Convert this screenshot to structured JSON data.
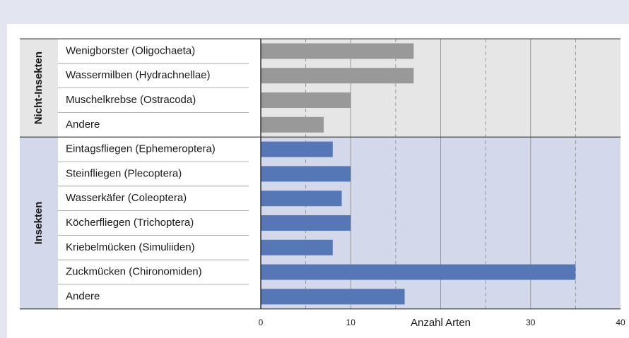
{
  "chart_data": {
    "type": "bar",
    "orientation": "horizontal",
    "groups": [
      {
        "name": "Nicht-Insekten",
        "color": "#999999",
        "background": "#e6e6e7",
        "categories": [
          "Wenigborster (Oligochaeta)",
          "Wassermilben (Hydrachnellae)",
          "Muschelkrebse (Ostracoda)",
          "Andere"
        ],
        "values": [
          17,
          17,
          10,
          7
        ]
      },
      {
        "name": "Insekten",
        "color": "#5577b5",
        "background": "#d3d8eb",
        "categories": [
          "Eintagsfliegen (Ephemeroptera)",
          "Steinfliegen (Plecoptera)",
          "Wasserkäfer (Coleoptera)",
          "Köcherfliegen (Trichoptera)",
          "Kriebelmücken (Simuliiden)",
          "Zuckmücken (Chironomiden)",
          "Andere"
        ],
        "values": [
          8,
          10,
          9,
          10,
          8,
          35,
          16
        ]
      }
    ],
    "xlabel": "Anzahl Arten",
    "xlabel_at": 20,
    "xlim": [
      0,
      40
    ],
    "xticks": [
      0,
      10,
      30,
      40
    ],
    "grid_major": [
      10,
      20,
      30
    ],
    "grid_minor": [
      5,
      15,
      25,
      35
    ]
  }
}
